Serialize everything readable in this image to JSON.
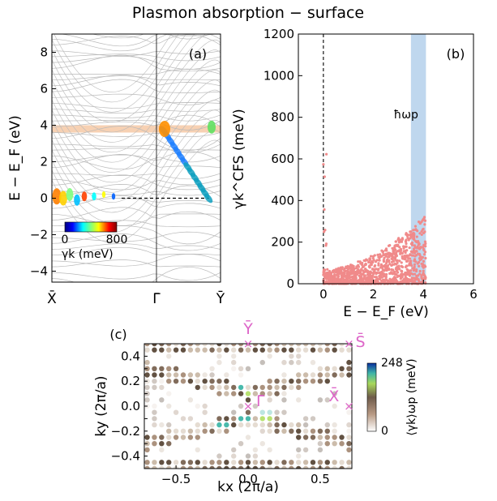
{
  "page_title": "Plasmon absorption − surface",
  "colors": {
    "band_lines": "#b9b9b9",
    "plasmon_band": "#f6c9a6",
    "scatter_points": "#f08a8a",
    "highlight_band": "#a9c9e8",
    "marker_pink": "#dd66c8"
  },
  "chart_data": [
    {
      "panel": "(a)",
      "type": "line",
      "description_words": "band structure with colored scattering markers",
      "ylabel": "E − E_F (eV)",
      "yticks": [
        8,
        6,
        4,
        2,
        0,
        -2,
        -4
      ],
      "ylim": [
        -4.6,
        9.0
      ],
      "xticks": [
        "X̄",
        "Γ̄",
        "Ȳ"
      ],
      "plasmon_band_energy": [
        3.6,
        4.0
      ],
      "fermi_level": 0,
      "colorbar": {
        "label": "γk (meV)",
        "min": 0,
        "max": 800,
        "tick_labels": [
          "0",
          "800"
        ]
      }
    },
    {
      "panel": "(b)",
      "type": "scatter",
      "xlabel": "E − E_F (eV)",
      "ylabel": "γk^CFS (meV)",
      "xticks": [
        0,
        2,
        4,
        6
      ],
      "yticks": [
        0,
        200,
        400,
        600,
        800,
        1000,
        1200
      ],
      "xlim": [
        -1,
        6
      ],
      "ylim": [
        0,
        1200
      ],
      "highlight_band_energy": [
        3.5,
        4.1
      ],
      "highlight_label": "ħωp",
      "fermi_line_x": 0
    },
    {
      "panel": "(c)",
      "type": "scatter",
      "xlabel": "kx (2π/a)",
      "ylabel": "ky (2π/a)",
      "xticks": [
        -0.5,
        0.0,
        0.5
      ],
      "yticks": [
        0.4,
        0.3,
        0.2,
        0.1,
        0.0,
        -0.1,
        -0.2,
        -0.3,
        -0.4
      ],
      "xlim": [
        -0.72,
        0.72
      ],
      "ylim": [
        -0.5,
        0.5
      ],
      "high_symmetry_points": [
        {
          "label": "Ȳ",
          "kx": 0.0,
          "ky": 0.5
        },
        {
          "label": "S̄",
          "kx": 0.7,
          "ky": 0.5
        },
        {
          "label": "Γ̄",
          "kx": 0.0,
          "ky": 0.0
        },
        {
          "label": "X̄",
          "kx": 0.7,
          "ky": 0.0
        }
      ],
      "colorbar": {
        "label": "⟨γk⟩ωp (meV)",
        "min": 0,
        "max": 248,
        "tick_labels": [
          "248",
          "0"
        ]
      }
    }
  ]
}
